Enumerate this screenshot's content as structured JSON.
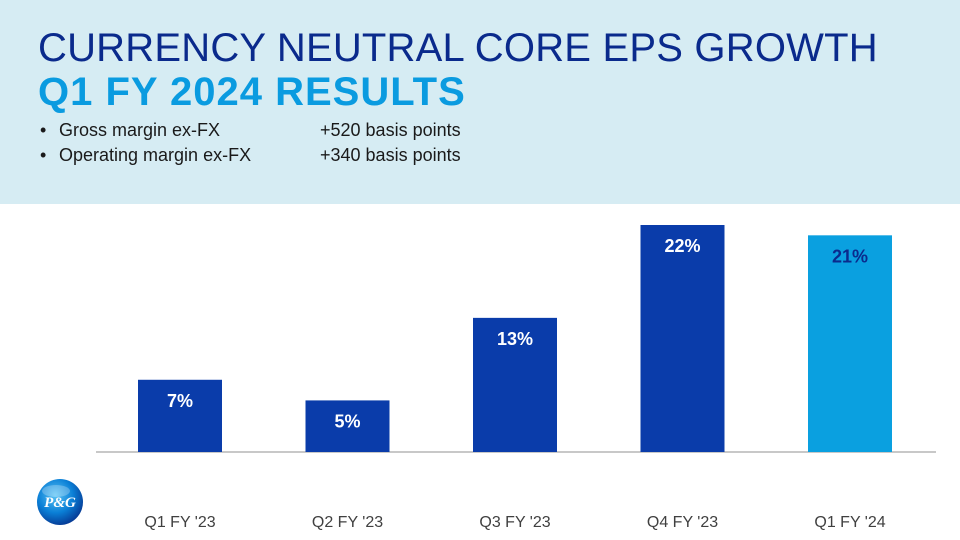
{
  "slide": {
    "title": "CURRENCY NEUTRAL CORE EPS GROWTH",
    "subtitle": "Q1 FY 2024 RESULTS",
    "bullets": [
      {
        "label": "Gross margin ex-FX",
        "value": "+520 basis points"
      },
      {
        "label": "Operating margin ex-FX",
        "value": "+340 basis points"
      }
    ],
    "logo_text": "P&G"
  },
  "colors": {
    "title": "#0a2a8c",
    "subtitle": "#0a9be0",
    "header_band": "#d6ecf3",
    "bar_dark": "#0a3caa",
    "bar_light": "#0aa0e0",
    "label_light_bar": "#0a2a8c",
    "axis": "#a6a6a6",
    "tick_text": "#404040"
  },
  "chart_data": {
    "type": "bar",
    "categories": [
      "Q1 FY '23",
      "Q2 FY '23",
      "Q3 FY '23",
      "Q4 FY '23",
      "Q1 FY '24"
    ],
    "values": [
      7,
      5,
      13,
      22,
      21
    ],
    "data_labels": [
      "7%",
      "5%",
      "13%",
      "22%",
      "21%"
    ],
    "bar_colors": [
      "#0a3caa",
      "#0a3caa",
      "#0a3caa",
      "#0a3caa",
      "#0aa0e0"
    ],
    "label_colors": [
      "#ffffff",
      "#ffffff",
      "#ffffff",
      "#ffffff",
      "#0a2a8c"
    ],
    "title": "",
    "xlabel": "",
    "ylabel": "",
    "unit": "%",
    "ylim": [
      0,
      22
    ],
    "grid": false,
    "legend": "none"
  }
}
